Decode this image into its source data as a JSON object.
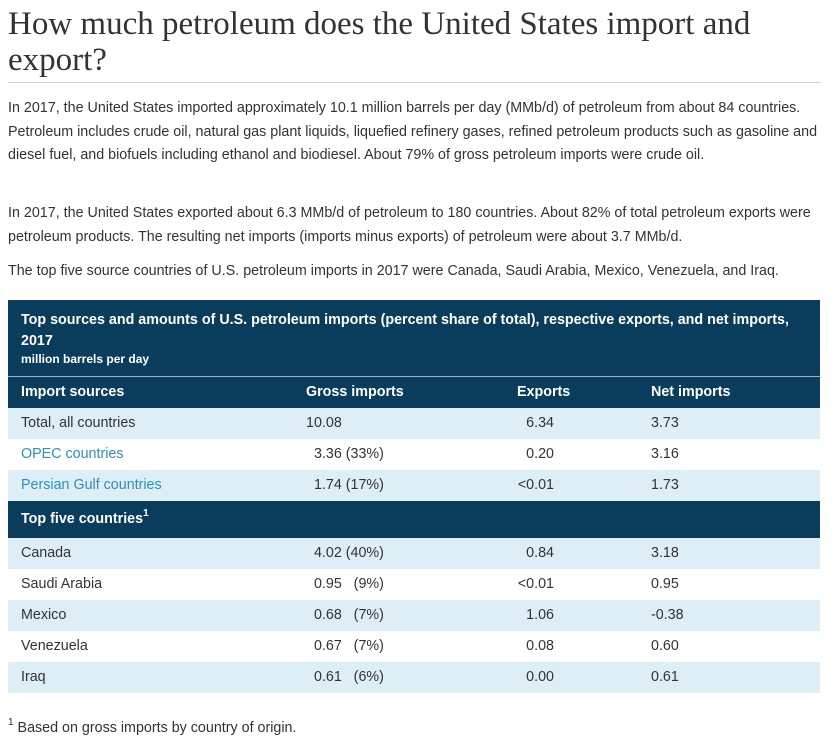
{
  "heading": "How much petroleum does the United States import and export?",
  "paragraphs": [
    "In 2017, the United States imported approximately 10.1 million barrels per day (MMb/d) of petroleum from about 84 countries. Petroleum includes crude oil, natural gas plant liquids, liquefied refinery gases, refined petroleum products such as gasoline and diesel fuel, and biofuels including ethanol and biodiesel. About 79% of gross petroleum imports were crude oil.",
    "In 2017, the United States exported about 6.3 MMb/d of petroleum to 180 countries. About 82% of total petroleum exports were petroleum products. The resulting net imports (imports minus exports) of petroleum were about 3.7 MMb/d.",
    "The top five source countries of U.S. petroleum imports in 2017 were Canada, Saudi Arabia, Mexico, Venezuela, and Iraq."
  ],
  "table": {
    "title": "Top sources and amounts of U.S. petroleum imports (percent share of total), respective exports, and net imports, 2017",
    "units": "million barrels per day",
    "headers": [
      "Import sources",
      "Gross imports",
      "Exports",
      "Net imports"
    ],
    "summary_rows": [
      {
        "source": "Total, all countries",
        "gross": "10.08",
        "exports": "6.34",
        "net": "3.73"
      },
      {
        "source": "OPEC countries",
        "gross": "  3.36 (33%)",
        "exports": "0.20",
        "net": "3.16"
      },
      {
        "source": "Persian Gulf countries",
        "gross": "  1.74 (17%)",
        "exports": "<0.01",
        "net": "1.73"
      }
    ],
    "subheader": "Top five countries",
    "subheader_sup": "1",
    "country_rows": [
      {
        "source": "Canada",
        "gross": "  4.02 (40%)",
        "exports": "0.84",
        "net": "3.18"
      },
      {
        "source": "Saudi Arabia",
        "gross": "  0.95   (9%)",
        "exports": "<0.01",
        "net": "0.95"
      },
      {
        "source": "Mexico",
        "gross": "  0.68   (7%)",
        "exports": "1.06",
        "net": "-0.38"
      },
      {
        "source": "Venezuela",
        "gross": "  0.67   (7%)",
        "exports": "0.08",
        "net": "0.60"
      },
      {
        "source": "Iraq",
        "gross": "  0.61   (6%)",
        "exports": "0.00",
        "net": "0.61"
      }
    ]
  },
  "footnote": {
    "marker": "1",
    "text": " Based on gross imports by country of origin."
  },
  "colors": {
    "header_bg": "#0a3d5c",
    "row_shade": "#deeef6",
    "link": "#2e8fc0"
  }
}
